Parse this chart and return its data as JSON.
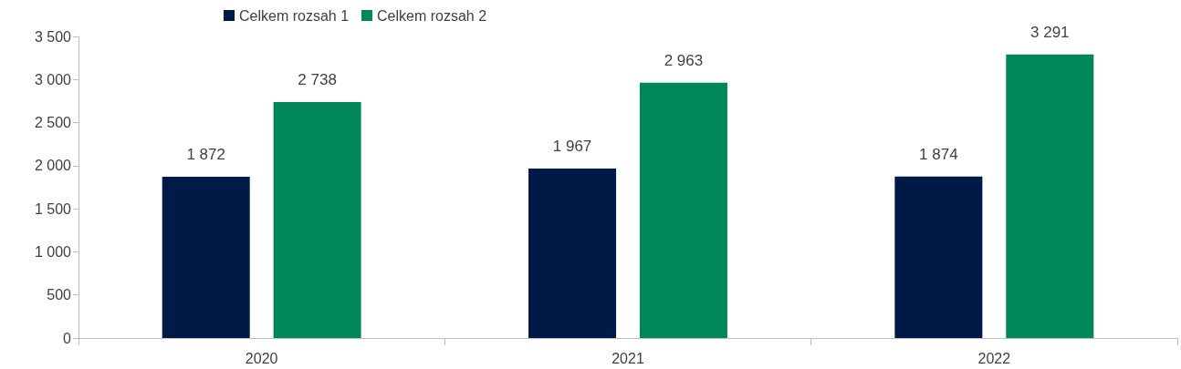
{
  "chart_data": {
    "type": "bar",
    "categories": [
      "2020",
      "2021",
      "2022"
    ],
    "series": [
      {
        "name": "Celkem rozsah 1",
        "color": "#001a47",
        "values": [
          1872,
          1967,
          1874
        ]
      },
      {
        "name": "Celkem rozsah 2",
        "color": "#00875a",
        "values": [
          2738,
          2963,
          3291
        ]
      }
    ],
    "ylim": [
      0,
      3500
    ],
    "yticks": [
      {
        "value": 0,
        "label": "0"
      },
      {
        "value": 500,
        "label": "500"
      },
      {
        "value": 1000,
        "label": "1 000"
      },
      {
        "value": 1500,
        "label": "1 500"
      },
      {
        "value": 2000,
        "label": "2 000"
      },
      {
        "value": 2500,
        "label": "2 500"
      },
      {
        "value": 3000,
        "label": "3 000"
      },
      {
        "value": 3500,
        "label": "3 500"
      }
    ],
    "data_labels": true,
    "grid": false,
    "legend": "top"
  }
}
